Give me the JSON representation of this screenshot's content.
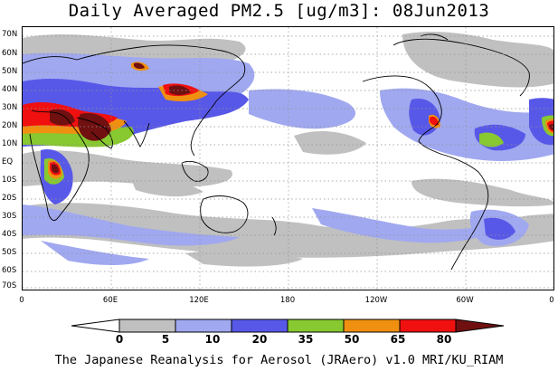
{
  "title": "Daily Averaged PM2.5 [ug/m3]: 08Jun2013",
  "credit": "The Japanese Reanalysis for Aerosol (JRAero) v1.0 MRI/KU_RIAM",
  "lat_labels": [
    "70N",
    "60N",
    "50N",
    "40N",
    "30N",
    "20N",
    "10N",
    "EQ",
    "10S",
    "20S",
    "30S",
    "40S",
    "50S",
    "60S",
    "70S"
  ],
  "lon_labels": [
    "0",
    "60E",
    "120E",
    "180",
    "120W",
    "60W",
    "0"
  ],
  "colorbar": {
    "levels": [
      "0",
      "5",
      "10",
      "20",
      "35",
      "50",
      "65",
      "80"
    ],
    "colors": [
      "#ffffff",
      "#c0c0c0",
      "#a0a8f0",
      "#5858e8",
      "#88c830",
      "#f09010",
      "#f01010",
      "#701010"
    ]
  }
}
